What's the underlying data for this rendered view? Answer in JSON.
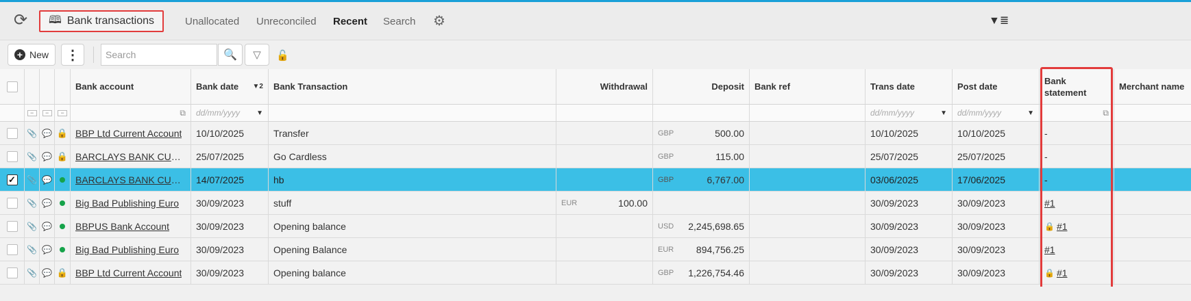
{
  "nav": {
    "refresh_icon": "refresh-icon",
    "bank_tab_label": "Bank transactions",
    "tabs": [
      "Unallocated",
      "Unreconciled",
      "Recent",
      "Search"
    ],
    "active_tab": "Recent",
    "settings_icon": "gear-icon",
    "filter_icon": "filter-list-icon"
  },
  "toolbar": {
    "new_label": "New",
    "more_icon": "more-vertical-icon",
    "search_placeholder": "Search",
    "search_icon": "search-icon",
    "filter_icon": "filter-icon",
    "lock_icon": "unlock-icon"
  },
  "table": {
    "headers": {
      "bank_account": "Bank account",
      "bank_date": "Bank date",
      "bank_date_sort": "▼2",
      "bank_transaction": "Bank Transaction",
      "withdrawal": "Withdrawal",
      "deposit": "Deposit",
      "bank_ref": "Bank ref",
      "trans_date": "Trans date",
      "post_date": "Post date",
      "bank_statement_1": "Bank",
      "bank_statement_2": "statement",
      "merchant_name": "Merchant name"
    },
    "filters": {
      "bank_date_placeholder": "dd/mm/yyyy",
      "trans_date_placeholder": "dd/mm/yyyy",
      "post_date_placeholder": "dd/mm/yyyy"
    },
    "rows": [
      {
        "status": "locked",
        "account": "BBP Ltd Current Account",
        "bank_date": "10/10/2025",
        "transaction": "Transfer",
        "wd_cur": "",
        "withdrawal": "",
        "dep_cur": "GBP",
        "deposit": "500.00",
        "bank_ref": "",
        "trans_date": "10/10/2025",
        "post_date": "10/10/2025",
        "statement": "-",
        "stmt_locked": false,
        "selected": false
      },
      {
        "status": "locked",
        "account": "BARCLAYS BANK CURR...",
        "bank_date": "25/07/2025",
        "transaction": "Go Cardless",
        "wd_cur": "",
        "withdrawal": "",
        "dep_cur": "GBP",
        "deposit": "115.00",
        "bank_ref": "",
        "trans_date": "25/07/2025",
        "post_date": "25/07/2025",
        "statement": "-",
        "stmt_locked": false,
        "selected": false
      },
      {
        "status": "active",
        "account": "BARCLAYS BANK CURR...",
        "bank_date": "14/07/2025",
        "transaction": "hb",
        "wd_cur": "",
        "withdrawal": "",
        "dep_cur": "GBP",
        "deposit": "6,767.00",
        "bank_ref": "",
        "trans_date": "03/06/2025",
        "post_date": "17/06/2025",
        "statement": "-",
        "stmt_locked": false,
        "selected": true
      },
      {
        "status": "active",
        "account": "Big Bad Publishing Euro",
        "bank_date": "30/09/2023",
        "transaction": "stuff",
        "wd_cur": "EUR",
        "withdrawal": "100.00",
        "dep_cur": "",
        "deposit": "",
        "bank_ref": "",
        "trans_date": "30/09/2023",
        "post_date": "30/09/2023",
        "statement": "#1",
        "stmt_locked": false,
        "selected": false
      },
      {
        "status": "active",
        "account": "BBPUS Bank Account",
        "bank_date": "30/09/2023",
        "transaction": "Opening balance",
        "wd_cur": "",
        "withdrawal": "",
        "dep_cur": "USD",
        "deposit": "2,245,698.65",
        "bank_ref": "",
        "trans_date": "30/09/2023",
        "post_date": "30/09/2023",
        "statement": "#1",
        "stmt_locked": true,
        "selected": false
      },
      {
        "status": "active",
        "account": "Big Bad Publishing Euro",
        "bank_date": "30/09/2023",
        "transaction": "Opening Balance",
        "wd_cur": "",
        "withdrawal": "",
        "dep_cur": "EUR",
        "deposit": "894,756.25",
        "bank_ref": "",
        "trans_date": "30/09/2023",
        "post_date": "30/09/2023",
        "statement": "#1",
        "stmt_locked": false,
        "selected": false
      },
      {
        "status": "locked",
        "account": "BBP Ltd Current Account",
        "bank_date": "30/09/2023",
        "transaction": "Opening balance",
        "wd_cur": "",
        "withdrawal": "",
        "dep_cur": "GBP",
        "deposit": "1,226,754.46",
        "bank_ref": "",
        "trans_date": "30/09/2023",
        "post_date": "30/09/2023",
        "statement": "#1",
        "stmt_locked": true,
        "selected": false
      }
    ]
  },
  "colors": {
    "accent": "#1aa0d8",
    "selected_row": "#3bbfe6",
    "highlight_box": "#e23b3b",
    "lock": "#d4961c",
    "status_dot": "#16a34a"
  }
}
